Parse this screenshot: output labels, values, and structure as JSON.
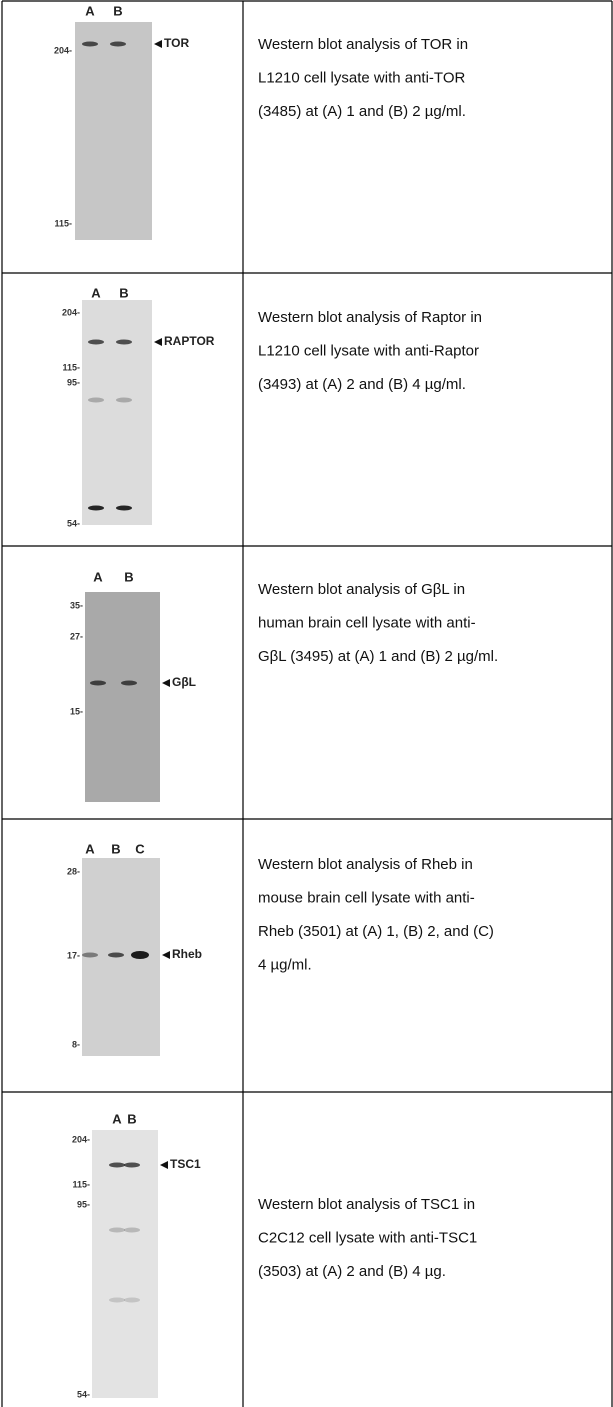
{
  "rows": [
    {
      "lanes": [
        "A",
        "B"
      ],
      "markers": [
        "204-",
        "115-"
      ],
      "target": "TOR",
      "caption": [
        "Western blot analysis of TOR in",
        "L1210 cell lysate with anti-TOR",
        "(3485) at (A) 1 and (B) 2 µg/ml."
      ]
    },
    {
      "lanes": [
        "A",
        "B"
      ],
      "markers": [
        "204-",
        "115-",
        "95-",
        "54-"
      ],
      "target": "RAPTOR",
      "caption": [
        "Western blot analysis of Raptor in",
        "L1210 cell lysate with anti-Raptor",
        "(3493) at (A) 2 and (B) 4 µg/ml."
      ]
    },
    {
      "lanes": [
        "A",
        "B"
      ],
      "markers": [
        "35-",
        "27-",
        "15-"
      ],
      "target": "GβL",
      "caption": [
        "Western blot analysis of GβL in",
        "human brain cell lysate with anti-",
        "GβL (3495) at (A) 1 and (B) 2 µg/ml."
      ]
    },
    {
      "lanes": [
        "A",
        "B",
        "C"
      ],
      "markers": [
        "28-",
        "17-",
        "8-"
      ],
      "target": "Rheb",
      "caption": [
        "Western blot analysis of Rheb in",
        "mouse brain cell lysate with anti-",
        "Rheb (3501) at (A) 1, (B) 2, and (C)",
        "4 µg/ml."
      ]
    },
    {
      "lanes": [
        "A",
        "B"
      ],
      "markers": [
        "204-",
        "115-",
        "95-",
        "54-"
      ],
      "target": "TSC1",
      "caption": [
        "Western blot analysis of TSC1 in",
        "C2C12 cell lysate with anti-TSC1",
        "(3503) at (A) 2 and (B) 4 µg."
      ]
    }
  ]
}
